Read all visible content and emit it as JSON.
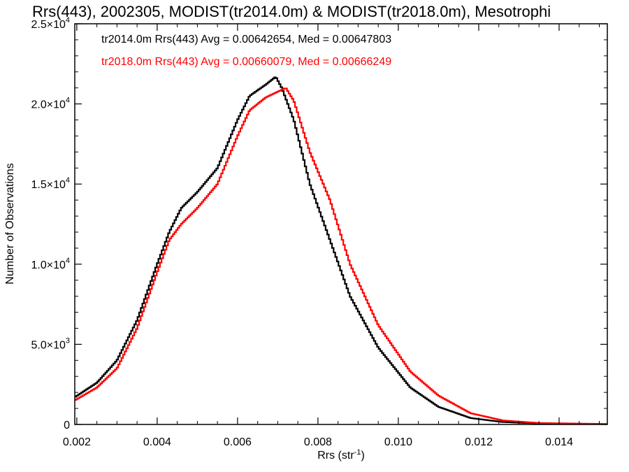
{
  "chart_data": {
    "type": "line",
    "title": "Rrs(443), 2002305, MODIST(tr2014.0m) & MODIST(tr2018.0m), Mesotrophi",
    "xlabel": "Rrs (str",
    "xlabel_sup": "-1",
    "xlabel_end": ")",
    "ylabel": "Number of Observations",
    "xlim": [
      0.00195,
      0.0152
    ],
    "ylim": [
      0,
      25000
    ],
    "x_ticks": [
      {
        "value": 0.002,
        "label": "0.002"
      },
      {
        "value": 0.004,
        "label": "0.004"
      },
      {
        "value": 0.006,
        "label": "0.006"
      },
      {
        "value": 0.008,
        "label": "0.008"
      },
      {
        "value": 0.01,
        "label": "0.010"
      },
      {
        "value": 0.012,
        "label": "0.012"
      },
      {
        "value": 0.014,
        "label": "0.014"
      }
    ],
    "y_ticks": [
      {
        "value": 0,
        "label": "0",
        "exp": ""
      },
      {
        "value": 5000,
        "label": "5.0×10",
        "exp": "3"
      },
      {
        "value": 10000,
        "label": "1.0×10",
        "exp": "4"
      },
      {
        "value": 15000,
        "label": "1.5×10",
        "exp": "4"
      },
      {
        "value": 20000,
        "label": "2.0×10",
        "exp": "4"
      },
      {
        "value": 25000,
        "label": "2.5×10",
        "exp": "4"
      }
    ],
    "legend_placement": "top-left",
    "grid": false,
    "series": [
      {
        "name": "tr2014.0m Rrs(443) Avg = 0.00642654, Med = 0.00647803",
        "color": "#000000",
        "points": [
          [
            0.00195,
            1700
          ],
          [
            0.0025,
            2600
          ],
          [
            0.003,
            4000
          ],
          [
            0.0035,
            6500
          ],
          [
            0.004,
            10000
          ],
          [
            0.0043,
            12000
          ],
          [
            0.0046,
            13500
          ],
          [
            0.005,
            14500
          ],
          [
            0.0055,
            16000
          ],
          [
            0.006,
            19000
          ],
          [
            0.0063,
            20500
          ],
          [
            0.0067,
            21200
          ],
          [
            0.00695,
            21700
          ],
          [
            0.0071,
            21000
          ],
          [
            0.0074,
            19000
          ],
          [
            0.0078,
            15000
          ],
          [
            0.0083,
            11500
          ],
          [
            0.0088,
            8000
          ],
          [
            0.0095,
            4800
          ],
          [
            0.0103,
            2300
          ],
          [
            0.011,
            1100
          ],
          [
            0.0118,
            400
          ],
          [
            0.0126,
            150
          ],
          [
            0.0135,
            60
          ],
          [
            0.0152,
            20
          ]
        ]
      },
      {
        "name": "tr2018.0m Rrs(443) Avg = 0.00660079, Med = 0.00666249",
        "color": "#ff0000",
        "points": [
          [
            0.00195,
            1500
          ],
          [
            0.0025,
            2300
          ],
          [
            0.003,
            3500
          ],
          [
            0.0035,
            6000
          ],
          [
            0.004,
            9500
          ],
          [
            0.0043,
            11500
          ],
          [
            0.0046,
            12500
          ],
          [
            0.005,
            13500
          ],
          [
            0.0055,
            15000
          ],
          [
            0.006,
            18000
          ],
          [
            0.0063,
            19600
          ],
          [
            0.0067,
            20400
          ],
          [
            0.0072,
            21000
          ],
          [
            0.0074,
            20200
          ],
          [
            0.0078,
            17000
          ],
          [
            0.0083,
            14000
          ],
          [
            0.0088,
            10000
          ],
          [
            0.0095,
            6200
          ],
          [
            0.0103,
            3300
          ],
          [
            0.011,
            1800
          ],
          [
            0.0118,
            700
          ],
          [
            0.0126,
            250
          ],
          [
            0.0135,
            90
          ],
          [
            0.0152,
            30
          ]
        ]
      }
    ]
  }
}
